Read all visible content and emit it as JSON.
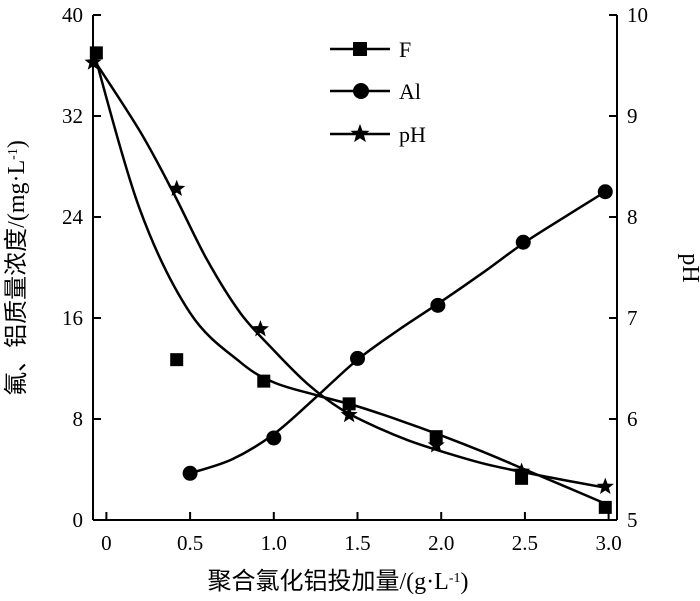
{
  "chart_data": {
    "type": "line",
    "xlabel": "聚合氯化铝投加量/(g·L",
    "xlabel_sup": "-1",
    "xlabel_close": ")",
    "ylabel": "氟、铝质量浓度/(mg·L",
    "ylabel_sup": "-1",
    "ylabel_close": ")",
    "y2label": "pH",
    "xlim": [
      -0.08,
      3.05
    ],
    "ylim": [
      0,
      40
    ],
    "y2lim": [
      5,
      10
    ],
    "x_ticks": [
      0,
      0.5,
      1.0,
      1.5,
      2.0,
      2.5,
      3.0
    ],
    "x_tick_labels": [
      "0",
      "0.5",
      "1.0",
      "1.5",
      "2.0",
      "2.5",
      "3.0"
    ],
    "y_ticks": [
      0,
      8,
      16,
      24,
      32,
      40
    ],
    "y_tick_labels": [
      "0",
      "8",
      "16",
      "24",
      "32",
      "40"
    ],
    "y2_ticks": [
      5,
      6,
      7,
      8,
      9,
      10
    ],
    "y2_tick_labels": [
      "5",
      "6",
      "7",
      "8",
      "9",
      "10"
    ],
    "grid": false,
    "legend_position": "top-center",
    "series": [
      {
        "name": "F",
        "marker": "square",
        "axis": "left",
        "x": [
          -0.06,
          0.42,
          0.94,
          1.45,
          1.97,
          2.48,
          2.98
        ],
        "y": [
          37.0,
          12.7,
          11.0,
          9.2,
          6.6,
          3.3,
          1.0
        ],
        "curve": [
          [
            -0.08,
            37.3
          ],
          [
            0.2,
            24.6
          ],
          [
            0.5,
            16.4
          ],
          [
            0.8,
            12.5
          ],
          [
            1.0,
            10.9
          ],
          [
            1.25,
            9.9
          ],
          [
            1.5,
            9.0
          ],
          [
            1.75,
            7.9
          ],
          [
            2.0,
            6.7
          ],
          [
            2.25,
            5.4
          ],
          [
            2.5,
            4.0
          ],
          [
            2.75,
            2.6
          ],
          [
            2.98,
            1.3
          ]
        ]
      },
      {
        "name": "Al",
        "marker": "circle",
        "axis": "left",
        "x": [
          0.5,
          1.0,
          1.5,
          1.98,
          2.49,
          2.98
        ],
        "y": [
          3.7,
          6.5,
          12.8,
          17.0,
          22.0,
          26.0
        ],
        "curve": [
          [
            0.5,
            3.7
          ],
          [
            0.75,
            4.8
          ],
          [
            1.0,
            6.8
          ],
          [
            1.25,
            9.7
          ],
          [
            1.5,
            12.7
          ],
          [
            1.75,
            15.1
          ],
          [
            2.0,
            17.3
          ],
          [
            2.25,
            19.6
          ],
          [
            2.5,
            22.0
          ],
          [
            2.75,
            24.1
          ],
          [
            2.98,
            26.0
          ]
        ]
      },
      {
        "name": "pH",
        "marker": "star",
        "axis": "right",
        "x": [
          -0.08,
          0.42,
          0.92,
          1.45,
          1.97,
          2.48,
          2.98
        ],
        "y": [
          9.53,
          8.28,
          6.89,
          6.04,
          5.74,
          5.48,
          5.33
        ],
        "curve": [
          [
            -0.08,
            9.57
          ],
          [
            0.2,
            8.85
          ],
          [
            0.4,
            8.24
          ],
          [
            0.6,
            7.58
          ],
          [
            0.8,
            7.05
          ],
          [
            1.0,
            6.68
          ],
          [
            1.2,
            6.35
          ],
          [
            1.4,
            6.1
          ],
          [
            1.6,
            5.93
          ],
          [
            1.8,
            5.79
          ],
          [
            2.0,
            5.68
          ],
          [
            2.25,
            5.56
          ],
          [
            2.5,
            5.47
          ],
          [
            2.75,
            5.39
          ],
          [
            2.98,
            5.32
          ]
        ]
      }
    ]
  }
}
